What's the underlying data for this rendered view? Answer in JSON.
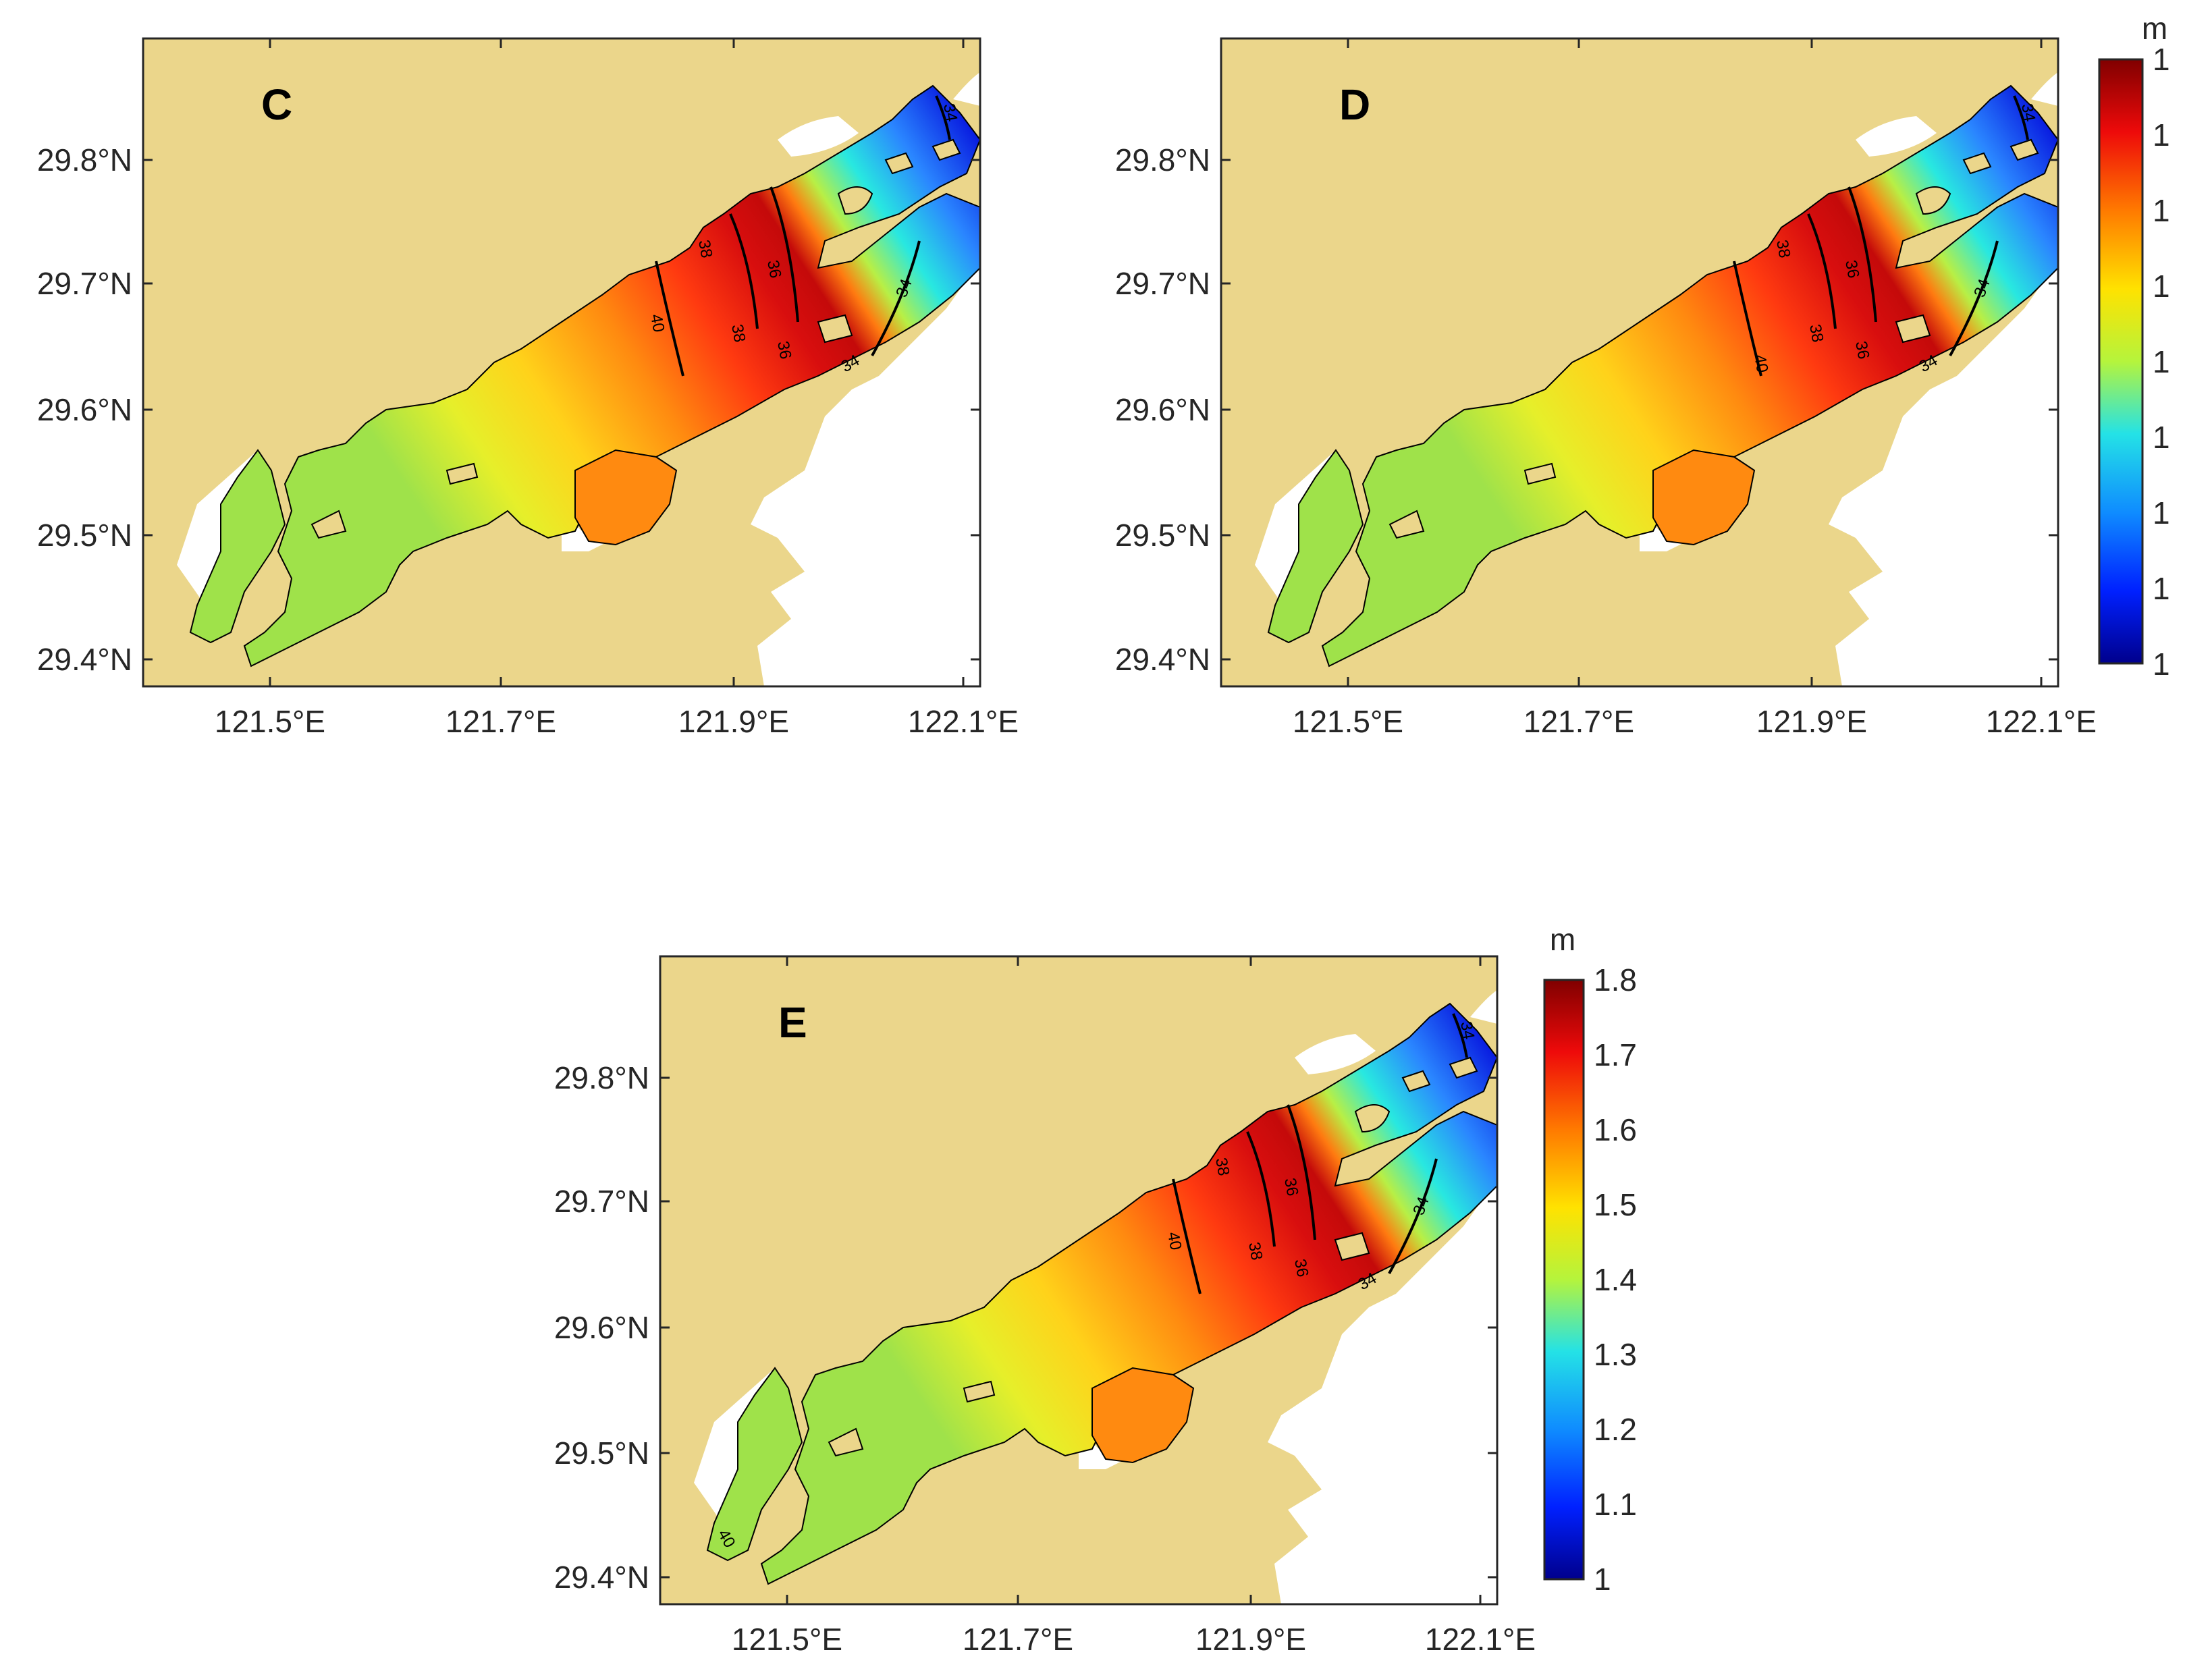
{
  "maps": [
    {
      "id": "C",
      "label": "C",
      "contours": [
        "40",
        "38",
        "38",
        "36",
        "36",
        "34",
        "34",
        "34"
      ]
    },
    {
      "id": "D",
      "label": "D",
      "contours": [
        "40",
        "38",
        "38",
        "36",
        "36",
        "34",
        "34",
        "34"
      ]
    },
    {
      "id": "E",
      "label": "E",
      "contours": [
        "40",
        "38",
        "38",
        "36",
        "36",
        "34",
        "34",
        "34",
        "40"
      ]
    }
  ],
  "axes": {
    "y_ticks": [
      "29.8°N",
      "29.7°N",
      "29.6°N",
      "29.5°N",
      "29.4°N"
    ],
    "x_ticks": [
      "121.5°E",
      "121.7°E",
      "121.9°E",
      "122.1°E"
    ]
  },
  "colorbar": {
    "unit": "m",
    "min": 1,
    "max": 1.8,
    "ticks": [
      "1.8",
      "1.7",
      "1.6",
      "1.5",
      "1.4",
      "1.3",
      "1.2",
      "1.1",
      "1"
    ]
  },
  "colors": {
    "land": "#ebd68b",
    "water_hi": "#b00000",
    "water_lo": "#0000c8"
  }
}
